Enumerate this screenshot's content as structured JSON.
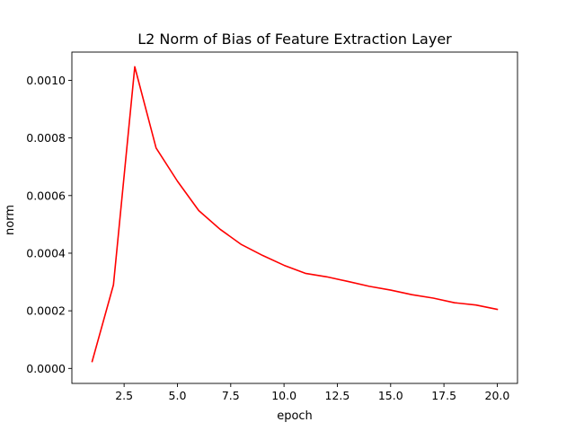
{
  "chart_data": {
    "type": "line",
    "title": "L2 Norm of Bias of Feature Extraction Layer",
    "xlabel": "epoch",
    "ylabel": "norm",
    "xlim": [
      0.05,
      20.95
    ],
    "ylim": [
      -5.2e-05,
      0.001098
    ],
    "xticks": [
      2.5,
      5.0,
      7.5,
      10.0,
      12.5,
      15.0,
      17.5,
      20.0
    ],
    "xtick_labels": [
      "2.5",
      "5.0",
      "7.5",
      "10.0",
      "12.5",
      "15.0",
      "17.5",
      "20.0"
    ],
    "yticks": [
      0.0,
      0.0002,
      0.0004,
      0.0006,
      0.0008,
      0.001
    ],
    "ytick_labels": [
      "0.0000",
      "0.0002",
      "0.0004",
      "0.0006",
      "0.0008",
      "0.0010"
    ],
    "grid": false,
    "series": [
      {
        "color": "#ff0000",
        "x": [
          1,
          2,
          3,
          4,
          5,
          6,
          7,
          8,
          9,
          10,
          11,
          12,
          13,
          14,
          15,
          16,
          17,
          18,
          19,
          20
        ],
        "y": [
          2.4e-05,
          0.00029,
          0.001047,
          0.000765,
          0.00065,
          0.000548,
          0.000483,
          0.00043,
          0.000392,
          0.000358,
          0.00033,
          0.000318,
          0.000302,
          0.000285,
          0.000272,
          0.000256,
          0.000244,
          0.000228,
          0.00022,
          0.000205
        ]
      }
    ]
  }
}
